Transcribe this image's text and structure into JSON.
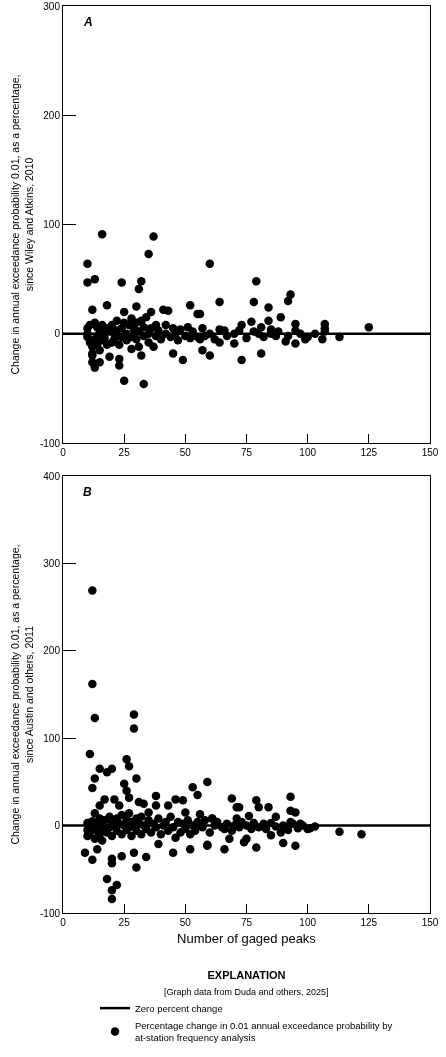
{
  "chart_data": [
    {
      "type": "scatter",
      "ylabel": "Change in annual exceedance probability 0.01, as a percentage, since Wiley and Atkins, 2010",
      "annotations": [
        "A"
      ],
      "xlim": [
        0,
        150
      ],
      "xticks": [
        0,
        25,
        50,
        75,
        100,
        125,
        150
      ],
      "ylim": [
        -100,
        300
      ],
      "yticks": [
        -100,
        0,
        100,
        200,
        300
      ],
      "grid": false,
      "marker": "circle",
      "ref_lines": [
        {
          "axis": "y",
          "value": 0,
          "color": "#000000"
        }
      ],
      "series": [
        {
          "color": "#000000",
          "x": [
            16,
            37,
            35,
            10,
            60,
            10,
            13,
            24,
            32,
            31,
            64,
            18,
            12,
            30,
            52,
            55,
            41,
            43,
            25,
            36,
            19,
            23,
            23,
            49,
            28,
            31,
            32,
            37,
            45,
            57,
            60,
            73,
            12,
            12,
            15,
            25,
            33,
            13,
            79,
            93,
            92,
            78,
            84,
            84,
            89,
            107,
            107,
            125,
            113,
            81,
            73,
            77,
            81,
            56,
            66,
            70,
            95,
            99,
            106,
            91,
            85,
            95,
            97,
            64,
            56,
            10,
            10,
            10,
            11,
            11,
            12,
            12,
            13,
            13,
            14,
            14,
            14,
            15,
            15,
            16,
            16,
            17,
            17,
            18,
            18,
            19,
            20,
            20,
            21,
            21,
            22,
            22,
            23,
            24,
            24,
            25,
            26,
            26,
            27,
            28,
            28,
            29,
            30,
            30,
            31,
            32,
            33,
            33,
            34,
            35,
            35,
            36,
            38,
            38,
            39,
            40,
            42,
            42,
            44,
            45,
            46,
            47,
            48,
            50,
            51,
            52,
            53,
            55,
            57,
            58,
            60,
            62,
            64,
            67,
            70,
            72,
            75,
            78,
            80,
            82,
            85,
            87,
            88,
            92,
            95,
            100,
            103,
            107
          ],
          "values": [
            91,
            89,
            73,
            64,
            64,
            47,
            50,
            47,
            48,
            41,
            29,
            26,
            22,
            25,
            26,
            18,
            22,
            21,
            20,
            20,
            -21,
            -23,
            -29,
            -24,
            -14,
            -12,
            -20,
            -12,
            -18,
            -15,
            -20,
            -24,
            -18,
            -26,
            -26,
            -43,
            -46,
            -31,
            48,
            36,
            30,
            29,
            24,
            12,
            15,
            9,
            5,
            6,
            -3,
            -18,
            8,
            11,
            6,
            18,
            3,
            -9,
            -9,
            -5,
            -5,
            -7,
            0,
            9,
            0,
            -8,
            -5,
            5,
            -3,
            0,
            8,
            -8,
            -12,
            -20,
            10,
            -5,
            6,
            -10,
            -2,
            3,
            -15,
            8,
            -6,
            0,
            -4,
            5,
            -10,
            2,
            -8,
            8,
            0,
            -5,
            12,
            3,
            -10,
            5,
            -3,
            10,
            0,
            -6,
            8,
            14,
            -3,
            4,
            10,
            -5,
            2,
            12,
            -2,
            6,
            15,
            0,
            -8,
            5,
            8,
            -2,
            3,
            -5,
            0,
            8,
            -3,
            5,
            0,
            -6,
            4,
            -2,
            6,
            -4,
            2,
            -3,
            5,
            -2,
            0,
            -5,
            4,
            -2,
            0,
            3,
            -4,
            2,
            0,
            -3,
            4,
            -2,
            2,
            -2,
            3,
            -3,
            0,
            2
          ]
        }
      ]
    },
    {
      "type": "scatter",
      "xlabel": "Number of gaged peaks",
      "ylabel": "Change in annual exceedance probability 0.01, as a percentage, since Austin and others, 2011",
      "annotations": [
        "B",
        "[Graph data from Duda and others, 2025]"
      ],
      "legend_title": "EXPLANATION",
      "legend": "bottom",
      "xlim": [
        0,
        150
      ],
      "xticks": [
        0,
        25,
        50,
        75,
        100,
        125,
        150
      ],
      "ylim": [
        -100,
        400
      ],
      "yticks": [
        -100,
        0,
        100,
        200,
        300,
        400
      ],
      "grid": false,
      "marker": "circle",
      "ref_lines": [
        {
          "axis": "y",
          "value": 0,
          "label": "Zero percent change",
          "color": "#000000"
        }
      ],
      "series": [
        {
          "name": "Percentage change in 0.01 annual exceedance probability by at-station frequency analysis",
          "color": "#000000",
          "x": [
            12,
            12,
            13,
            29,
            29,
            11,
            26,
            27,
            15,
            18,
            20,
            13,
            12,
            30,
            25,
            59,
            53,
            26,
            55,
            38,
            27,
            46,
            49,
            17,
            21,
            31,
            33,
            38,
            43,
            69,
            71,
            15,
            23,
            13,
            35,
            50,
            56,
            61,
            9,
            12,
            14,
            16,
            20,
            20,
            24,
            30,
            34,
            18,
            22,
            20,
            20,
            45,
            52,
            39,
            66,
            29,
            59,
            74,
            68,
            93,
            72,
            79,
            80,
            84,
            93,
            95,
            113,
            122,
            79,
            90,
            95,
            101,
            103,
            85,
            75,
            59,
            61,
            71,
            76,
            87,
            93,
            97,
            100,
            82,
            66,
            89,
            56,
            10,
            10,
            10,
            11,
            12,
            12,
            13,
            14,
            14,
            15,
            15,
            16,
            17,
            17,
            18,
            19,
            19,
            20,
            20,
            21,
            22,
            22,
            23,
            24,
            24,
            25,
            26,
            26,
            27,
            27,
            28,
            28,
            29,
            30,
            30,
            31,
            32,
            32,
            33,
            34,
            35,
            36,
            37,
            38,
            39,
            40,
            41,
            42,
            43,
            44,
            45,
            46,
            47,
            48,
            49,
            50,
            51,
            52,
            53,
            54,
            55,
            57,
            58,
            60,
            62,
            63,
            65,
            67,
            69,
            70,
            72,
            73,
            75,
            77,
            78,
            80,
            83,
            85,
            87,
            90,
            92,
            94,
            96,
            98
          ],
          "values": [
            269,
            162,
            123,
            127,
            111,
            82,
            76,
            68,
            65,
            61,
            65,
            54,
            43,
            54,
            48,
            50,
            44,
            40,
            35,
            34,
            32,
            30,
            29,
            30,
            30,
            27,
            25,
            23,
            23,
            31,
            21,
            23,
            23,
            14,
            15,
            15,
            13,
            8,
            -31,
            -39,
            -27,
            -17,
            -38,
            -43,
            -35,
            -48,
            -36,
            -61,
            -68,
            -74,
            -84,
            -31,
            -27,
            -21,
            -27,
            -31,
            -23,
            -19,
            -15,
            33,
            21,
            29,
            21,
            21,
            17,
            15,
            -7,
            -10,
            -25,
            -20,
            -23,
            -3,
            -1,
            -11,
            -15,
            -22,
            8,
            8,
            11,
            10,
            4,
            2,
            -4,
            2,
            -4,
            -8,
            0,
            3,
            -5,
            -12,
            -8,
            5,
            -3,
            -15,
            2,
            -6,
            8,
            -10,
            0,
            -4,
            6,
            -8,
            10,
            -2,
            4,
            -12,
            0,
            -6,
            8,
            2,
            -10,
            12,
            0,
            -5,
            6,
            14,
            -2,
            4,
            -12,
            0,
            8,
            -6,
            2,
            -10,
            10,
            0,
            -4,
            6,
            -8,
            2,
            -2,
            8,
            -10,
            0,
            4,
            -6,
            10,
            -2,
            -14,
            4,
            -8,
            2,
            -4,
            6,
            -10,
            0,
            -6,
            4,
            -2,
            6,
            -8,
            0,
            4,
            -2,
            2,
            -6,
            0,
            -2,
            4,
            0,
            -4,
            3,
            -2,
            -4,
            3,
            -1,
            0,
            -5,
            2,
            -3,
            0
          ]
        }
      ]
    }
  ]
}
